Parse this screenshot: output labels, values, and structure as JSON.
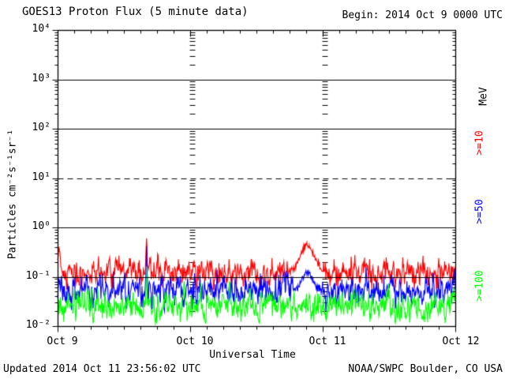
{
  "header": {
    "title": "GOES13 Proton Flux (5 minute data)",
    "begin_label": "Begin: 2014 Oct 9 0000 UTC"
  },
  "footer": {
    "updated": "Updated 2014 Oct 11 23:56:02 UTC",
    "source": "NOAA/SWPC Boulder, CO USA"
  },
  "y_axis": {
    "label": "Particles cm⁻²s⁻¹sr⁻¹",
    "tick_labels": [
      "10⁴",
      "10³",
      "10²",
      "10¹",
      "10⁰",
      "10⁻¹",
      "10⁻²"
    ]
  },
  "x_axis": {
    "label": "Universal Time",
    "tick_labels": [
      "Oct 9",
      "Oct 10",
      "Oct 11",
      "Oct 12"
    ]
  },
  "right_legend": {
    "units": "MeV",
    "entries": [
      {
        "label": ">=10",
        "color": "#ff0000"
      },
      {
        "label": ">=50",
        "color": "#0000ff"
      },
      {
        "label": ">=100",
        "color": "#00ff00"
      }
    ]
  },
  "colors": {
    "axis": "#000000",
    "background": "#ffffff"
  },
  "chart_data": {
    "type": "line",
    "title": "GOES13 Proton Flux (5 minute data)",
    "xlabel": "Universal Time",
    "ylabel": "Particles cm⁻²s⁻¹sr⁻¹",
    "x_start": "2014 Oct 9 0000 UTC",
    "x_tick_labels": [
      "Oct 9",
      "Oct 10",
      "Oct 11",
      "Oct 12"
    ],
    "days": 3,
    "points_per_day": 288,
    "cadence_minutes": 5,
    "y_scale": "log",
    "ylim": [
      0.01,
      10000
    ],
    "solid_hlines": [
      1000,
      100,
      1,
      0.1
    ],
    "dashed_hlines": [
      10
    ],
    "legend_position": "right",
    "series": [
      {
        "name": ">=10 MeV",
        "color": "#ff0000",
        "baseline_flux": 0.12,
        "noise_log10_sigma": 0.13,
        "min_flux": 0.055,
        "max_flux": 0.5,
        "events": [
          {
            "t_days": 0.012,
            "peak_flux": 0.38,
            "width_days": 0.008
          },
          {
            "t_days": 0.67,
            "peak_flux": 0.62,
            "width_days": 0.004
          },
          {
            "t_days": 1.88,
            "peak_flux": 0.45,
            "width_days": 0.05
          }
        ]
      },
      {
        "name": ">=50 MeV",
        "color": "#0000ff",
        "baseline_flux": 0.05,
        "noise_log10_sigma": 0.15,
        "min_flux": 0.02,
        "max_flux": 0.28,
        "events": [
          {
            "t_days": 0.67,
            "peak_flux": 0.4,
            "width_days": 0.003
          },
          {
            "t_days": 1.88,
            "peak_flux": 0.12,
            "width_days": 0.04
          }
        ]
      },
      {
        "name": ">=100 MeV",
        "color": "#00ff00",
        "baseline_flux": 0.026,
        "noise_log10_sigma": 0.14,
        "min_flux": 0.0115,
        "max_flux": 0.09,
        "events": [
          {
            "t_days": 0.67,
            "peak_flux": 0.16,
            "width_days": 0.003
          }
        ]
      }
    ]
  }
}
